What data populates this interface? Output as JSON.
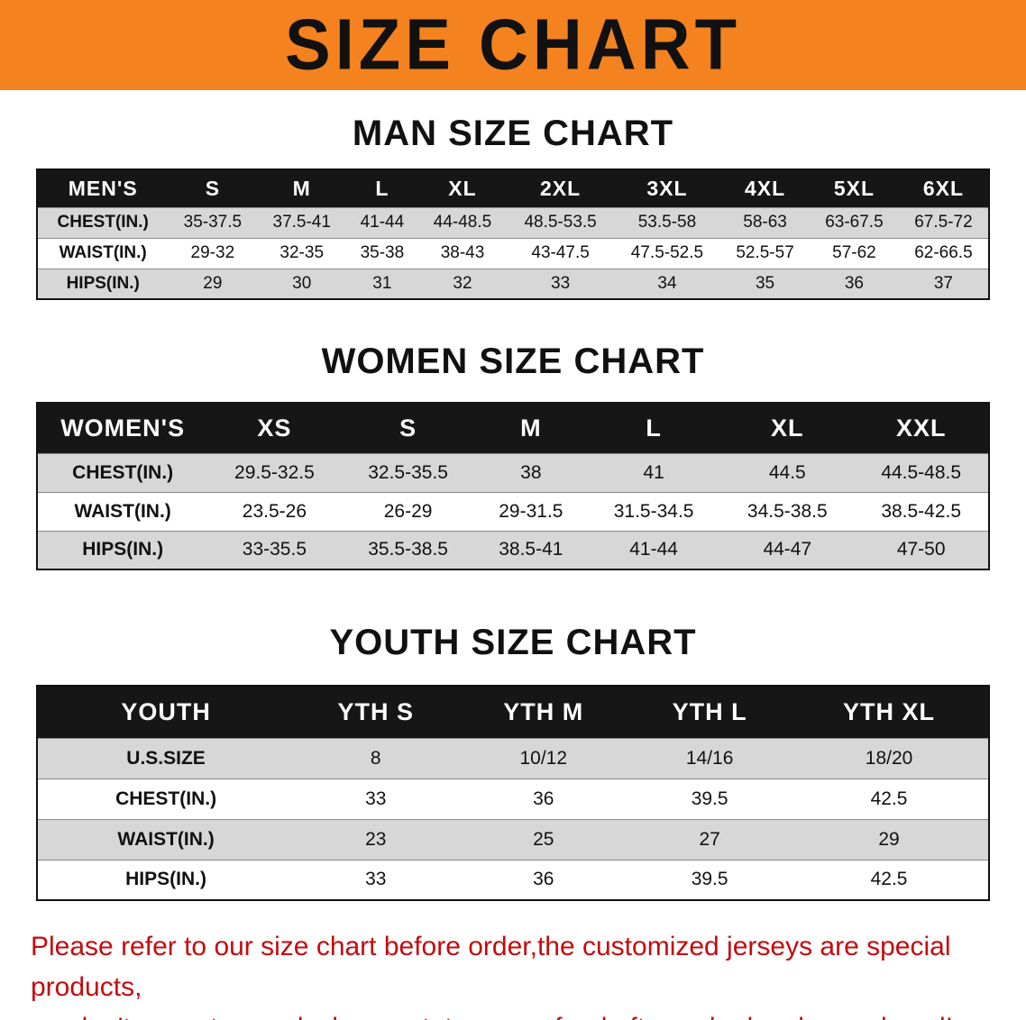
{
  "banner": {
    "title": "SIZE CHART"
  },
  "sections": [
    {
      "id": "men",
      "heading": "MAN SIZE CHART",
      "header": [
        "MEN'S",
        "S",
        "M",
        "L",
        "XL",
        "2XL",
        "3XL",
        "4XL",
        "5XL",
        "6XL"
      ],
      "rows": [
        {
          "label": "CHEST(IN.)",
          "values": [
            "35-37.5",
            "37.5-41",
            "41-44",
            "44-48.5",
            "48.5-53.5",
            "53.5-58",
            "58-63",
            "63-67.5",
            "67.5-72"
          ]
        },
        {
          "label": "WAIST(IN.)",
          "values": [
            "29-32",
            "32-35",
            "35-38",
            "38-43",
            "43-47.5",
            "47.5-52.5",
            "52.5-57",
            "57-62",
            "62-66.5"
          ]
        },
        {
          "label": "HIPS(IN.)",
          "values": [
            "29",
            "30",
            "31",
            "32",
            "33",
            "34",
            "35",
            "36",
            "37"
          ]
        }
      ]
    },
    {
      "id": "women",
      "heading": "WOMEN SIZE CHART",
      "header": [
        "WOMEN'S",
        "XS",
        "S",
        "M",
        "L",
        "XL",
        "XXL"
      ],
      "rows": [
        {
          "label": "CHEST(IN.)",
          "values": [
            "29.5-32.5",
            "32.5-35.5",
            "38",
            "41",
            "44.5",
            "44.5-48.5"
          ]
        },
        {
          "label": "WAIST(IN.)",
          "values": [
            "23.5-26",
            "26-29",
            "29-31.5",
            "31.5-34.5",
            "34.5-38.5",
            "38.5-42.5"
          ]
        },
        {
          "label": "HIPS(IN.)",
          "values": [
            "33-35.5",
            "35.5-38.5",
            "38.5-41",
            "41-44",
            "44-47",
            "47-50"
          ]
        }
      ]
    },
    {
      "id": "youth",
      "heading": "YOUTH SIZE CHART",
      "header": [
        "YOUTH",
        "YTH S",
        "YTH M",
        "YTH L",
        "YTH XL"
      ],
      "rows": [
        {
          "label": "U.S.SIZE",
          "values": [
            "8",
            "10/12",
            "14/16",
            "18/20"
          ]
        },
        {
          "label": "CHEST(IN.)",
          "values": [
            "33",
            "36",
            "39.5",
            "42.5"
          ]
        },
        {
          "label": "WAIST(IN.)",
          "values": [
            "23",
            "25",
            "27",
            "29"
          ]
        },
        {
          "label": "HIPS(IN.)",
          "values": [
            "33",
            "36",
            "39.5",
            "42.5"
          ]
        }
      ]
    }
  ],
  "disclaimer": {
    "line1": "Please refer to our size chart before order,the customized jerseys are special products,",
    "line2": "we don't accept cancel, change, teturn or refund after order has been placed!"
  },
  "colors": {
    "banner_bg": "#f4821e",
    "header_bg": "#161616",
    "row_alt_bg": "#d7d7d7",
    "disclaimer_text": "#c40b0e"
  }
}
